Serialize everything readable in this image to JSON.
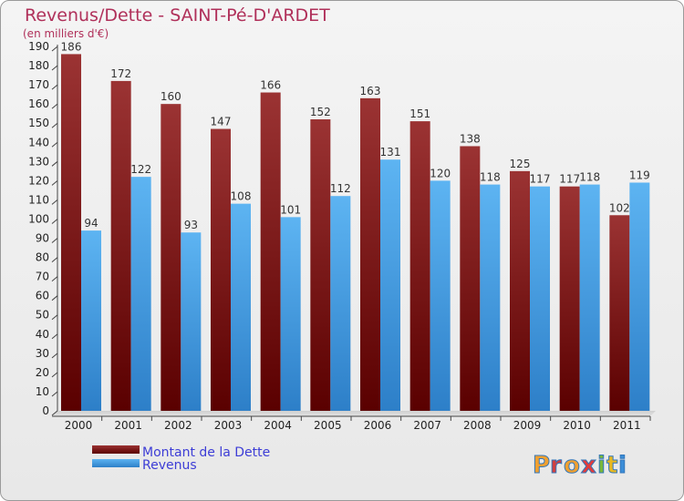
{
  "chart_data": {
    "type": "bar",
    "title": "Revenus/Dette - SAINT-Pé-D'ARDET",
    "subtitle": "(en milliers d'€)",
    "categories": [
      "2000",
      "2001",
      "2002",
      "2003",
      "2004",
      "2005",
      "2006",
      "2007",
      "2008",
      "2009",
      "2010",
      "2011"
    ],
    "series": [
      {
        "name": "Montant de la Dette",
        "color": "#8b1a1a",
        "values": [
          186,
          172,
          160,
          147,
          166,
          152,
          163,
          151,
          138,
          125,
          117,
          102
        ]
      },
      {
        "name": "Revenus",
        "color": "#4aa3e8",
        "values": [
          94,
          122,
          93,
          108,
          101,
          112,
          131,
          120,
          118,
          117,
          118,
          119
        ]
      }
    ],
    "ylim": [
      0,
      190
    ],
    "ytick_step": 10,
    "grid": false,
    "legend_position": "bottom-left"
  },
  "branding": {
    "logo_text": "Proxiti"
  }
}
